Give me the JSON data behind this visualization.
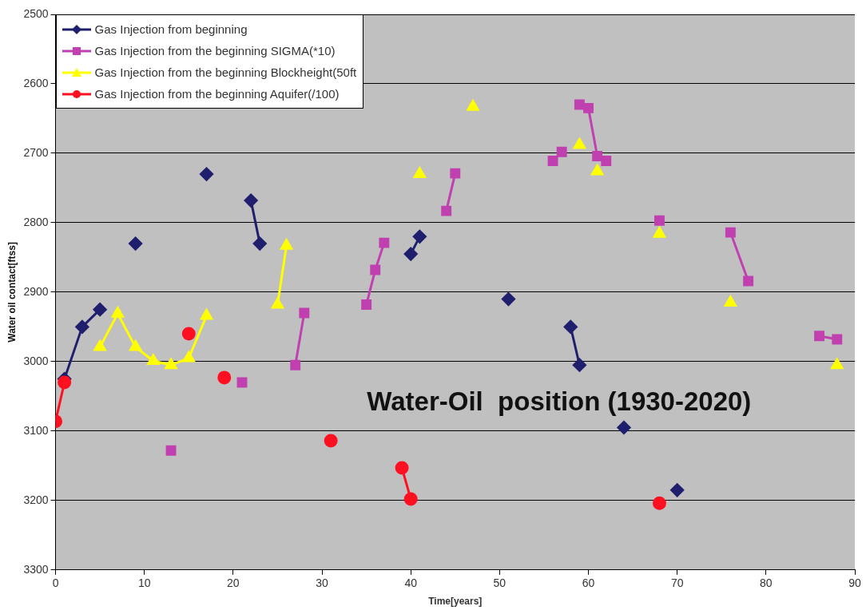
{
  "chart_data": {
    "type": "line",
    "xlabel": "Time[years]",
    "ylabel": "Water oil contact[ftss]",
    "annotations": [
      "Water-Oil  position (1930-2020)"
    ],
    "xlim": [
      0,
      90
    ],
    "xticks": [
      0,
      10,
      20,
      30,
      40,
      50,
      60,
      70,
      80,
      90
    ],
    "ylim": [
      3300,
      2500
    ],
    "yticks": [
      2500,
      2600,
      2700,
      2800,
      2900,
      3000,
      3100,
      3200,
      3300
    ],
    "grid": "y",
    "legend": "top left",
    "line_style": "solid",
    "series": [
      {
        "name": "Gas Injection from beginning",
        "color": "#1f1f6e",
        "marker": "diamond",
        "x": [
          1,
          3,
          5,
          7,
          9,
          13,
          17,
          20,
          22,
          23,
          30,
          40,
          41,
          45,
          51,
          55,
          58,
          59,
          62,
          64,
          67,
          70
        ],
        "values": [
          3025,
          2950,
          2925,
          null,
          2830,
          null,
          2730,
          null,
          2768,
          2830,
          null,
          2845,
          2820,
          null,
          2910,
          null,
          2950,
          3005,
          null,
          3095,
          null,
          3185
        ]
      },
      {
        "name": "Gas Injection from the beginning SIGMA(*10)",
        "color": "#c040b0",
        "marker": "square",
        "x": [
          13,
          17,
          21,
          24,
          27,
          28,
          31,
          35,
          36,
          37,
          40,
          44,
          45,
          50,
          56,
          57,
          58,
          59,
          60,
          61,
          62,
          65,
          68,
          72,
          76,
          78,
          82,
          86,
          88
        ],
        "values": [
          3128,
          null,
          3030,
          null,
          3005,
          2930,
          null,
          2918,
          2868,
          2829,
          null,
          2783,
          2729,
          null,
          2711,
          2698,
          null,
          2630,
          2635,
          2704,
          2711,
          null,
          2797,
          null,
          2814,
          2884,
          null,
          2963,
          2968
        ]
      },
      {
        "name": "Gas Injection from the beginning Blockheight(50ft",
        "color": "#ffff00",
        "marker": "triangle",
        "x": [
          5,
          7,
          9,
          11,
          13,
          15,
          17,
          21,
          25,
          26,
          33,
          41,
          44,
          47,
          53,
          59,
          60,
          61,
          65,
          68,
          72,
          76,
          82,
          88
        ],
        "values": [
          2979,
          2931,
          2979,
          2999,
          3005,
          2995,
          2934,
          null,
          2918,
          2833,
          null,
          2730,
          null,
          2633,
          null,
          2688,
          null,
          2726,
          null,
          2816,
          null,
          2915,
          null,
          3005
        ]
      },
      {
        "name": "Gas Injection from the beginning Aquifer(/100)",
        "color": "#ff1020",
        "marker": "circle",
        "x": [
          0,
          1,
          8,
          15,
          17,
          19,
          25,
          31,
          35,
          39,
          40,
          55,
          68
        ],
        "values": [
          3086,
          3030,
          null,
          2960,
          null,
          3023,
          null,
          3114,
          null,
          3153,
          3198,
          null,
          3204
        ]
      }
    ]
  }
}
